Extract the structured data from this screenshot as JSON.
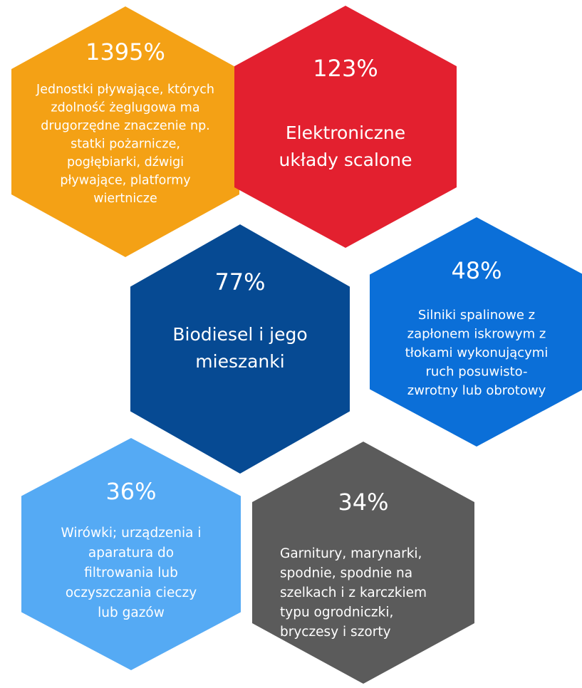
{
  "items": [
    {
      "value": "1395%",
      "color": "#f4a115",
      "lines": [
        "Jednostki pływające, których",
        "zdolność żeglugowa ma",
        "drugorzędne znaczenie np.",
        "statki pożarnicze,",
        "pogłębiarki, dźwigi",
        "pływające, platformy",
        "wiertnicze"
      ]
    },
    {
      "value": "123%",
      "color": "#e3202f",
      "lines": [
        "Elektroniczne",
        "układy scalone"
      ]
    },
    {
      "value": "77%",
      "color": "#064a93",
      "lines": [
        "Biodiesel i jego",
        "mieszanki"
      ]
    },
    {
      "value": "48%",
      "color": "#0b6fd8",
      "lines": [
        "Silniki spalinowe z",
        "zapłonem iskrowym z",
        "tłokami wykonującymi",
        "ruch posuwisto-",
        "zwrotny lub obrotowy"
      ]
    },
    {
      "value": "36%",
      "color": "#55aaf4",
      "lines": [
        "Wirówki; urządzenia i",
        "aparatura do",
        "filtrowania lub",
        "oczyszczania cieczy",
        "lub gazów"
      ]
    },
    {
      "value": "34%",
      "color": "#5b5b5b",
      "lines": [
        "Garnitury, marynarki,",
        "spodnie, spodnie na",
        "szelkach i z karczkiem",
        "typu ogrodniczki,",
        "bryczesy i szorty"
      ]
    }
  ]
}
